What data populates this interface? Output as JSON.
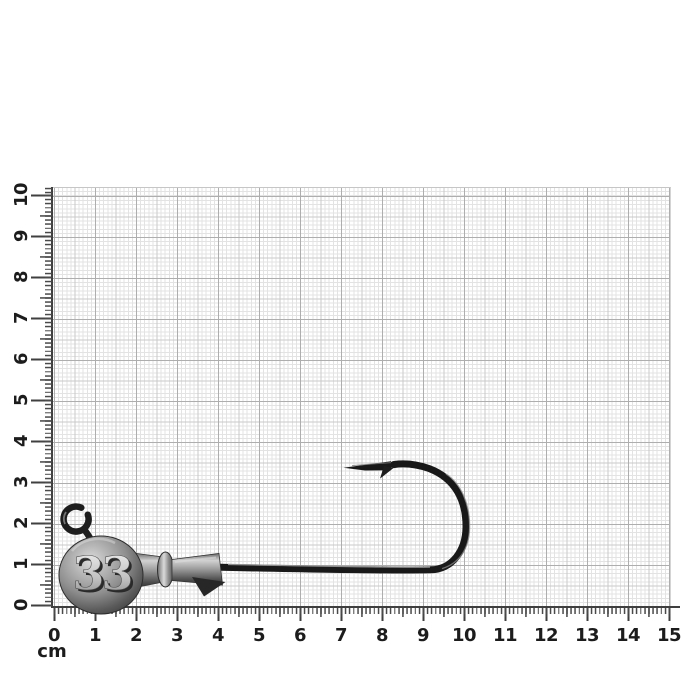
{
  "scene": {
    "subject": "jig-head fishing hook on centimeter measurement grid"
  },
  "rulers": {
    "unit_label": "cm",
    "horizontal": {
      "labels": [
        "0",
        "1",
        "2",
        "3",
        "4",
        "5",
        "6",
        "7",
        "8",
        "9",
        "10",
        "11",
        "12",
        "13",
        "14",
        "15"
      ]
    },
    "vertical": {
      "labels": [
        "0",
        "1",
        "2",
        "3",
        "4",
        "5",
        "6",
        "7",
        "8",
        "9",
        "10"
      ]
    }
  },
  "jig": {
    "head_marking": "33"
  },
  "colors": {
    "grid_minor": "#e3e3e3",
    "grid_mid": "#cacaca",
    "grid_major": "#aeaeae",
    "tick": "#3f3f3f",
    "label": "#1c1c1c",
    "hook_wire": "#191919",
    "head_metal": "#8e8e8e"
  }
}
